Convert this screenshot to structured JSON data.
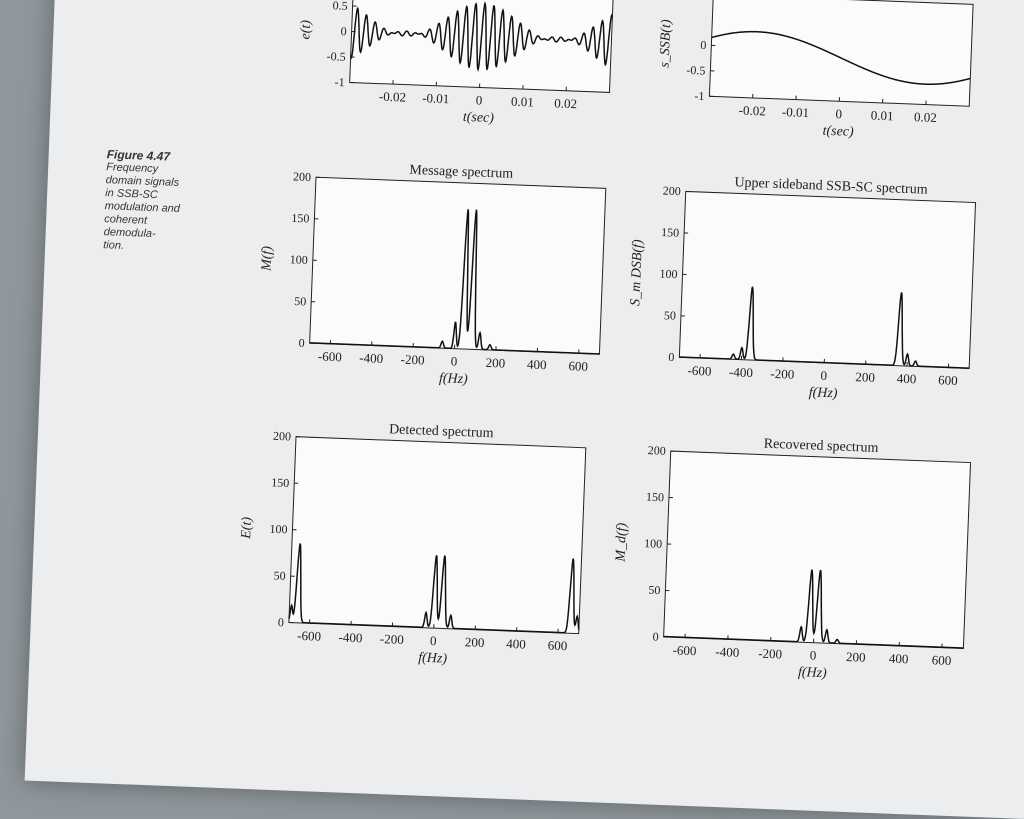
{
  "figure": {
    "number": "Figure 4.47",
    "caption_lines": [
      "Frequency",
      "domain signals",
      "in SSB-SC",
      "modulation and",
      "coherent",
      "demodula-",
      "tion."
    ]
  },
  "chart_data": [
    {
      "id": "top-left-time",
      "type": "line",
      "xlabel": "t(sec)",
      "ylabel": "e(t)",
      "xlim": [
        -0.03,
        0.03
      ],
      "ylim": [
        -1,
        1
      ],
      "xticks": [
        "-0.02",
        "-0.01",
        "0",
        "0.01",
        "0.02"
      ],
      "xtick_values": [
        -0.02,
        -0.01,
        0,
        0.01,
        0.02
      ],
      "yticks": [
        "-1",
        "-0.5",
        "0",
        "0.5"
      ],
      "ytick_values": [
        -1,
        -0.5,
        0,
        0.5
      ]
    },
    {
      "id": "top-right-time",
      "type": "line",
      "xlabel": "t(sec)",
      "ylabel": "s_SSB(t)",
      "xlim": [
        -0.03,
        0.03
      ],
      "ylim": [
        -1,
        1
      ],
      "xticks": [
        "-0.02",
        "-0.01",
        "0",
        "0.01",
        "0.02"
      ],
      "xtick_values": [
        -0.02,
        -0.01,
        0,
        0.01,
        0.02
      ],
      "yticks": [
        "-1",
        "-0.5",
        "0"
      ],
      "ytick_values": [
        -1,
        -0.5,
        0
      ]
    },
    {
      "id": "message-spectrum",
      "type": "line",
      "title": "Message spectrum",
      "xlabel": "f(Hz)",
      "ylabel": "M(f)",
      "xlim": [
        -700,
        700
      ],
      "ylim": [
        0,
        200
      ],
      "xticks": [
        "-600",
        "-400",
        "-200",
        "0",
        "200",
        "400",
        "600"
      ],
      "xtick_values": [
        -600,
        -400,
        -200,
        0,
        200,
        400,
        600
      ],
      "yticks": [
        "0",
        "50",
        "100",
        "150",
        "200"
      ],
      "ytick_values": [
        0,
        50,
        100,
        150,
        200
      ],
      "peaks": [
        {
          "center": 40,
          "height": 168,
          "width": 12
        },
        {
          "center": 80,
          "height": 168,
          "width": 12
        },
        {
          "center": 0,
          "height": 32,
          "width": 8
        },
        {
          "center": 120,
          "height": 20,
          "width": 8
        },
        {
          "center": -60,
          "height": 8,
          "width": 8
        },
        {
          "center": 170,
          "height": 6,
          "width": 8
        }
      ]
    },
    {
      "id": "ssb-spectrum",
      "type": "line",
      "title": "Upper sideband SSB-SC spectrum",
      "xlabel": "f(Hz)",
      "ylabel": "S_m DSB(f)",
      "xlim": [
        -700,
        700
      ],
      "ylim": [
        0,
        200
      ],
      "xticks": [
        "-600",
        "-400",
        "-200",
        "0",
        "200",
        "400",
        "600"
      ],
      "xtick_values": [
        -600,
        -400,
        -200,
        0,
        200,
        400,
        600
      ],
      "yticks": [
        "0",
        "50",
        "100",
        "150",
        "200"
      ],
      "ytick_values": [
        0,
        50,
        100,
        150,
        200
      ],
      "peaks": [
        {
          "center": -360,
          "height": 88,
          "width": 12
        },
        {
          "center": -400,
          "height": 14,
          "width": 8
        },
        {
          "center": -440,
          "height": 6,
          "width": 8
        },
        {
          "center": 360,
          "height": 88,
          "width": 12
        },
        {
          "center": 400,
          "height": 14,
          "width": 8
        },
        {
          "center": 440,
          "height": 6,
          "width": 8
        }
      ]
    },
    {
      "id": "detected-spectrum",
      "type": "line",
      "title": "Detected spectrum",
      "xlabel": "f(Hz)",
      "ylabel": "E(t)",
      "xlim": [
        -700,
        700
      ],
      "ylim": [
        0,
        200
      ],
      "xticks": [
        "-600",
        "-400",
        "-200",
        "0",
        "200",
        "400",
        "600"
      ],
      "xtick_values": [
        -600,
        -400,
        -200,
        0,
        200,
        400,
        600
      ],
      "yticks": [
        "0",
        "50",
        "100",
        "150",
        "200"
      ],
      "ytick_values": [
        0,
        50,
        100,
        150,
        200
      ],
      "peaks": [
        {
          "center": -660,
          "height": 85,
          "width": 12
        },
        {
          "center": -690,
          "height": 18,
          "width": 8
        },
        {
          "center": 0,
          "height": 78,
          "width": 12
        },
        {
          "center": 40,
          "height": 78,
          "width": 12
        },
        {
          "center": -40,
          "height": 16,
          "width": 8
        },
        {
          "center": 80,
          "height": 14,
          "width": 8
        },
        {
          "center": 660,
          "height": 80,
          "width": 12
        },
        {
          "center": 690,
          "height": 18,
          "width": 8
        }
      ]
    },
    {
      "id": "recovered-spectrum",
      "type": "line",
      "title": "Recovered spectrum",
      "xlabel": "f(Hz)",
      "ylabel": "M_d(f)",
      "xlim": [
        -700,
        700
      ],
      "ylim": [
        0,
        200
      ],
      "xticks": [
        "-600",
        "-400",
        "-200",
        "0",
        "200",
        "400",
        "600"
      ],
      "xtick_values": [
        -600,
        -400,
        -200,
        0,
        200,
        400,
        600
      ],
      "yticks": [
        "0",
        "50",
        "100",
        "150",
        "200"
      ],
      "ytick_values": [
        0,
        50,
        100,
        150,
        200
      ],
      "peaks": [
        {
          "center": -20,
          "height": 78,
          "width": 12
        },
        {
          "center": 20,
          "height": 78,
          "width": 12
        },
        {
          "center": -60,
          "height": 16,
          "width": 8
        },
        {
          "center": 60,
          "height": 14,
          "width": 8
        },
        {
          "center": 110,
          "height": 4,
          "width": 8
        }
      ]
    }
  ]
}
